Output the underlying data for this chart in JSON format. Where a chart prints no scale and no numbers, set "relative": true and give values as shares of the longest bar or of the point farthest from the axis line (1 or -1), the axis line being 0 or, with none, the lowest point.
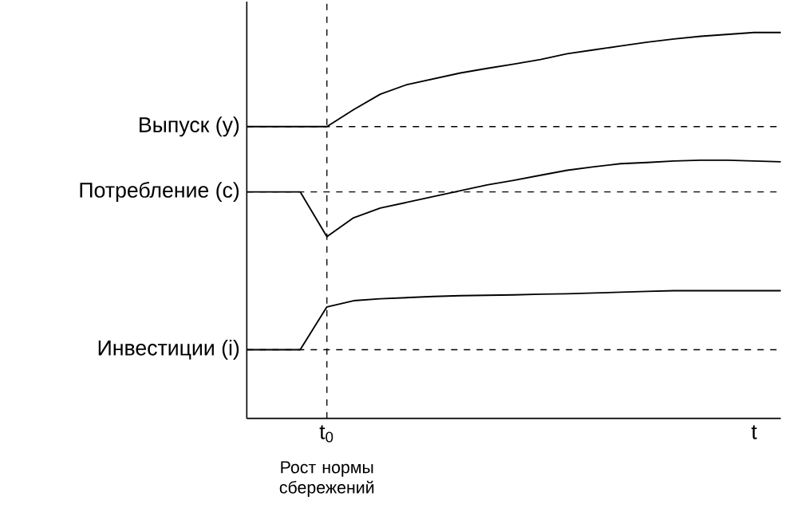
{
  "chart_data": {
    "type": "line",
    "relative": true,
    "line_style": "solid",
    "categories": [
      null,
      null,
      null,
      "t$_{0}$",
      null,
      null,
      null,
      null,
      null,
      null,
      null,
      null,
      null,
      null,
      null,
      null,
      null,
      null,
      null,
      "t",
      null
    ],
    "series": [
      {
        "color": "#000000",
        "values": [
          0.756,
          0.756,
          0.756,
          0.756,
          0.8,
          0.84,
          0.865,
          0.88,
          0.895,
          0.907,
          0.918,
          0.93,
          0.945,
          0.955,
          0.965,
          0.975,
          0.983,
          0.99,
          0.995,
          1.0,
          1.0
        ]
      },
      {
        "color": "#000000",
        "values": [
          0.587,
          0.587,
          0.587,
          0.471,
          0.52,
          0.545,
          0.56,
          0.575,
          0.59,
          0.605,
          0.617,
          0.63,
          0.643,
          0.652,
          0.66,
          0.663,
          0.667,
          0.669,
          0.669,
          0.667,
          0.665
        ]
      },
      {
        "color": "#000000",
        "values": [
          0.178,
          0.178,
          0.178,
          0.289,
          0.305,
          0.31,
          0.313,
          0.316,
          0.318,
          0.319,
          0.32,
          0.322,
          0.323,
          0.325,
          0.327,
          0.329,
          0.331,
          0.331,
          0.331,
          0.331,
          0.331
        ]
      }
    ],
    "ref_lines": [
      {
        "axis": "y",
        "value": 0.756,
        "label": "Выпуск (y)",
        "line_style": "dashed",
        "color": "#000000"
      },
      {
        "axis": "y",
        "value": 0.587,
        "label": "Потребление (c)",
        "line_style": "dashed",
        "color": "#000000"
      },
      {
        "axis": "y",
        "value": 0.178,
        "label": "Инвестиции (i)",
        "line_style": "dashed",
        "color": "#000000"
      },
      {
        "axis": "x",
        "value": "t$_{0}$",
        "line_style": "dashed",
        "color": "#000000"
      }
    ],
    "annotations": [
      "Рост нормы сбережений"
    ]
  }
}
